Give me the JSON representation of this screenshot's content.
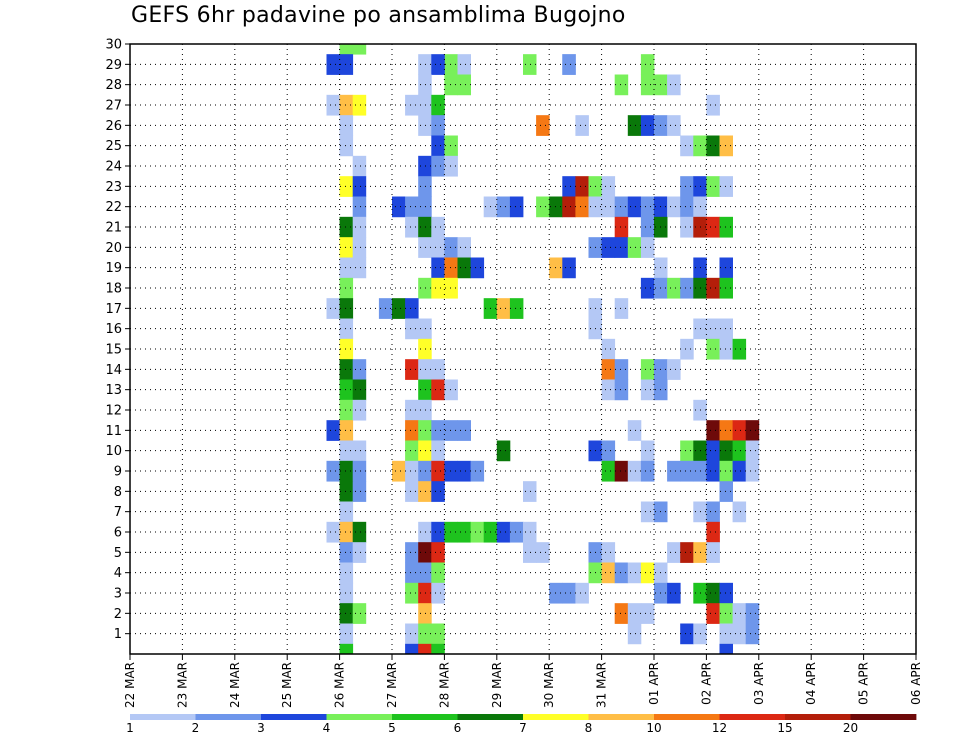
{
  "title": "GEFS 6hr padavine po ansamblima Bugojno",
  "chart_data": {
    "type": "heatmap",
    "title": "GEFS 6hr padavine po ansamblima Bugojno",
    "xlabel": "",
    "ylabel": "",
    "x_tick_labels": [
      "22 MAR",
      "23 MAR",
      "24 MAR",
      "25 MAR",
      "26 MAR",
      "27 MAR",
      "28 MAR",
      "29 MAR",
      "30 MAR",
      "31 MAR",
      "01 APR",
      "02 APR",
      "03 APR",
      "04 APR",
      "05 APR",
      "06 APR"
    ],
    "y_tick_labels": [
      "1",
      "2",
      "3",
      "4",
      "5",
      "6",
      "7",
      "8",
      "9",
      "10",
      "11",
      "12",
      "13",
      "14",
      "15",
      "16",
      "17",
      "18",
      "19",
      "20",
      "21",
      "22",
      "23",
      "24",
      "25",
      "26",
      "27",
      "28",
      "29",
      "30"
    ],
    "x_range": [
      "22 MAR 00",
      "06 APR 00"
    ],
    "y_range": [
      0,
      30
    ],
    "x_step": "6hr",
    "grid": true,
    "legend": {
      "placement": "bottom",
      "labels": [
        "1",
        "2",
        "3",
        "4",
        "5",
        "6",
        "7",
        "8",
        "10",
        "12",
        "15",
        "20"
      ],
      "colors": [
        "#b4c8f5",
        "#6e96eb",
        "#1e46dc",
        "#78f05a",
        "#1ec31e",
        "#0a780a",
        "#ffff28",
        "#ffbe46",
        "#f57814",
        "#dc2814",
        "#b41e0a",
        "#6e0a0a"
      ]
    },
    "levels": [
      1,
      2,
      3,
      4,
      5,
      6,
      7,
      8,
      10,
      12,
      15,
      20
    ],
    "cells": [
      [
        16,
        30,
        1
      ],
      [
        16,
        30,
        4
      ],
      [
        17,
        30,
        4
      ],
      [
        22,
        29,
        1
      ],
      [
        24,
        29,
        4
      ],
      [
        25,
        29,
        1
      ],
      [
        30,
        29,
        4
      ],
      [
        33,
        29,
        1
      ],
      [
        33,
        29,
        2
      ],
      [
        39,
        29,
        4
      ],
      [
        15,
        29,
        3
      ],
      [
        16,
        29,
        3
      ],
      [
        23,
        29,
        3
      ],
      [
        22,
        28,
        1
      ],
      [
        24,
        28,
        4
      ],
      [
        25,
        28,
        4
      ],
      [
        37,
        28,
        4
      ],
      [
        39,
        28,
        4
      ],
      [
        40,
        28,
        4
      ],
      [
        41,
        28,
        1
      ],
      [
        15,
        27,
        1
      ],
      [
        16,
        27,
        8
      ],
      [
        17,
        27,
        7
      ],
      [
        21,
        27,
        1
      ],
      [
        22,
        27,
        1
      ],
      [
        23,
        27,
        5
      ],
      [
        44,
        27,
        1
      ],
      [
        16,
        26,
        1
      ],
      [
        22,
        26,
        1
      ],
      [
        23,
        26,
        2
      ],
      [
        31,
        26,
        10
      ],
      [
        34,
        26,
        1
      ],
      [
        38,
        26,
        6
      ],
      [
        39,
        26,
        3
      ],
      [
        40,
        26,
        2
      ],
      [
        41,
        26,
        1
      ],
      [
        16,
        25,
        1
      ],
      [
        23,
        25,
        3
      ],
      [
        24,
        25,
        4
      ],
      [
        42,
        25,
        1
      ],
      [
        43,
        25,
        4
      ],
      [
        44,
        25,
        6
      ],
      [
        45,
        25,
        8
      ],
      [
        17,
        24,
        1
      ],
      [
        22,
        24,
        3
      ],
      [
        23,
        24,
        2
      ],
      [
        24,
        24,
        1
      ],
      [
        16,
        23,
        7
      ],
      [
        17,
        23,
        3
      ],
      [
        22,
        23,
        2
      ],
      [
        33,
        23,
        3
      ],
      [
        34,
        23,
        15
      ],
      [
        35,
        23,
        4
      ],
      [
        36,
        23,
        1
      ],
      [
        42,
        23,
        2
      ],
      [
        43,
        23,
        3
      ],
      [
        44,
        23,
        4
      ],
      [
        45,
        23,
        1
      ],
      [
        17,
        22,
        2
      ],
      [
        20,
        22,
        3
      ],
      [
        21,
        22,
        2
      ],
      [
        22,
        22,
        2
      ],
      [
        27,
        22,
        1
      ],
      [
        28,
        22,
        2
      ],
      [
        29,
        22,
        3
      ],
      [
        31,
        22,
        4
      ],
      [
        32,
        22,
        6
      ],
      [
        33,
        22,
        15
      ],
      [
        34,
        22,
        10
      ],
      [
        35,
        22,
        1
      ],
      [
        36,
        22,
        1
      ],
      [
        37,
        22,
        2
      ],
      [
        38,
        22,
        3
      ],
      [
        39,
        22,
        2
      ],
      [
        40,
        22,
        3
      ],
      [
        41,
        22,
        1
      ],
      [
        42,
        22,
        2
      ],
      [
        43,
        22,
        1
      ],
      [
        16,
        21,
        6
      ],
      [
        17,
        21,
        1
      ],
      [
        21,
        21,
        1
      ],
      [
        22,
        21,
        6
      ],
      [
        23,
        21,
        1
      ],
      [
        37,
        21,
        12
      ],
      [
        39,
        21,
        2
      ],
      [
        40,
        21,
        6
      ],
      [
        42,
        21,
        1
      ],
      [
        43,
        21,
        15
      ],
      [
        44,
        21,
        12
      ],
      [
        45,
        21,
        5
      ],
      [
        16,
        20,
        7
      ],
      [
        17,
        20,
        1
      ],
      [
        22,
        20,
        1
      ],
      [
        23,
        20,
        1
      ],
      [
        24,
        20,
        2
      ],
      [
        25,
        20,
        1
      ],
      [
        35,
        20,
        2
      ],
      [
        36,
        20,
        3
      ],
      [
        37,
        20,
        3
      ],
      [
        38,
        20,
        4
      ],
      [
        39,
        20,
        1
      ],
      [
        16,
        19,
        1
      ],
      [
        17,
        19,
        1
      ],
      [
        23,
        19,
        3
      ],
      [
        24,
        19,
        10
      ],
      [
        25,
        19,
        6
      ],
      [
        26,
        19,
        3
      ],
      [
        32,
        19,
        8
      ],
      [
        33,
        19,
        3
      ],
      [
        40,
        19,
        1
      ],
      [
        43,
        19,
        3
      ],
      [
        45,
        19,
        3
      ],
      [
        16,
        18,
        4
      ],
      [
        22,
        18,
        4
      ],
      [
        23,
        18,
        7
      ],
      [
        24,
        18,
        7
      ],
      [
        39,
        18,
        3
      ],
      [
        40,
        18,
        2
      ],
      [
        41,
        18,
        4
      ],
      [
        42,
        18,
        2
      ],
      [
        43,
        18,
        6
      ],
      [
        44,
        18,
        15
      ],
      [
        45,
        18,
        5
      ],
      [
        15,
        17,
        1
      ],
      [
        16,
        17,
        6
      ],
      [
        19,
        17,
        2
      ],
      [
        20,
        17,
        6
      ],
      [
        21,
        17,
        3
      ],
      [
        27,
        17,
        5
      ],
      [
        28,
        17,
        8
      ],
      [
        29,
        17,
        5
      ],
      [
        35,
        17,
        1
      ],
      [
        37,
        17,
        1
      ],
      [
        16,
        16,
        1
      ],
      [
        21,
        16,
        1
      ],
      [
        22,
        16,
        1
      ],
      [
        35,
        16,
        1
      ],
      [
        43,
        16,
        1
      ],
      [
        44,
        16,
        1
      ],
      [
        45,
        16,
        1
      ],
      [
        16,
        15,
        7
      ],
      [
        22,
        15,
        7
      ],
      [
        36,
        15,
        1
      ],
      [
        42,
        15,
        1
      ],
      [
        44,
        15,
        4
      ],
      [
        45,
        15,
        1
      ],
      [
        46,
        15,
        5
      ],
      [
        16,
        14,
        6
      ],
      [
        17,
        14,
        2
      ],
      [
        21,
        14,
        12
      ],
      [
        22,
        14,
        1
      ],
      [
        23,
        14,
        1
      ],
      [
        36,
        14,
        10
      ],
      [
        37,
        14,
        2
      ],
      [
        39,
        14,
        4
      ],
      [
        40,
        14,
        2
      ],
      [
        41,
        14,
        1
      ],
      [
        16,
        13,
        5
      ],
      [
        17,
        13,
        6
      ],
      [
        22,
        13,
        5
      ],
      [
        23,
        13,
        12
      ],
      [
        24,
        13,
        1
      ],
      [
        36,
        13,
        1
      ],
      [
        37,
        13,
        2
      ],
      [
        39,
        13,
        1
      ],
      [
        40,
        13,
        2
      ],
      [
        16,
        12,
        4
      ],
      [
        17,
        12,
        1
      ],
      [
        21,
        12,
        1
      ],
      [
        22,
        12,
        1
      ],
      [
        43,
        12,
        1
      ],
      [
        15,
        11,
        3
      ],
      [
        16,
        11,
        8
      ],
      [
        21,
        11,
        10
      ],
      [
        22,
        11,
        4
      ],
      [
        23,
        11,
        2
      ],
      [
        24,
        11,
        2
      ],
      [
        25,
        11,
        2
      ],
      [
        38,
        11,
        1
      ],
      [
        44,
        11,
        20
      ],
      [
        45,
        11,
        10
      ],
      [
        46,
        11,
        12
      ],
      [
        47,
        11,
        20
      ],
      [
        16,
        10,
        1
      ],
      [
        17,
        10,
        1
      ],
      [
        21,
        10,
        4
      ],
      [
        22,
        10,
        7
      ],
      [
        23,
        10,
        1
      ],
      [
        28,
        10,
        6
      ],
      [
        35,
        10,
        3
      ],
      [
        36,
        10,
        2
      ],
      [
        39,
        10,
        1
      ],
      [
        42,
        10,
        4
      ],
      [
        43,
        10,
        6
      ],
      [
        44,
        10,
        3
      ],
      [
        45,
        10,
        6
      ],
      [
        46,
        10,
        5
      ],
      [
        47,
        10,
        1
      ],
      [
        15,
        9,
        2
      ],
      [
        16,
        9,
        6
      ],
      [
        17,
        9,
        2
      ],
      [
        20,
        9,
        8
      ],
      [
        21,
        9,
        1
      ],
      [
        22,
        9,
        2
      ],
      [
        23,
        9,
        12
      ],
      [
        24,
        9,
        3
      ],
      [
        25,
        9,
        3
      ],
      [
        26,
        9,
        2
      ],
      [
        36,
        9,
        5
      ],
      [
        37,
        9,
        20
      ],
      [
        38,
        9,
        1
      ],
      [
        39,
        9,
        2
      ],
      [
        41,
        9,
        2
      ],
      [
        42,
        9,
        2
      ],
      [
        43,
        9,
        2
      ],
      [
        44,
        9,
        3
      ],
      [
        45,
        9,
        4
      ],
      [
        46,
        9,
        3
      ],
      [
        47,
        9,
        1
      ],
      [
        16,
        8,
        6
      ],
      [
        17,
        8,
        2
      ],
      [
        21,
        8,
        1
      ],
      [
        22,
        8,
        8
      ],
      [
        23,
        8,
        3
      ],
      [
        30,
        8,
        1
      ],
      [
        45,
        8,
        2
      ],
      [
        16,
        7,
        1
      ],
      [
        39,
        7,
        1
      ],
      [
        40,
        7,
        2
      ],
      [
        43,
        7,
        1
      ],
      [
        44,
        7,
        2
      ],
      [
        46,
        7,
        1
      ],
      [
        15,
        6,
        1
      ],
      [
        16,
        6,
        8
      ],
      [
        17,
        6,
        6
      ],
      [
        22,
        6,
        1
      ],
      [
        23,
        6,
        3
      ],
      [
        24,
        6,
        5
      ],
      [
        25,
        6,
        5
      ],
      [
        26,
        6,
        4
      ],
      [
        27,
        6,
        5
      ],
      [
        28,
        6,
        3
      ],
      [
        29,
        6,
        2
      ],
      [
        30,
        6,
        1
      ],
      [
        44,
        6,
        12
      ],
      [
        16,
        5,
        2
      ],
      [
        17,
        5,
        1
      ],
      [
        21,
        5,
        2
      ],
      [
        22,
        5,
        20
      ],
      [
        23,
        5,
        12
      ],
      [
        30,
        5,
        1
      ],
      [
        31,
        5,
        1
      ],
      [
        35,
        5,
        2
      ],
      [
        36,
        5,
        1
      ],
      [
        41,
        5,
        1
      ],
      [
        42,
        5,
        15
      ],
      [
        43,
        5,
        8
      ],
      [
        44,
        5,
        1
      ],
      [
        16,
        4,
        1
      ],
      [
        21,
        4,
        2
      ],
      [
        22,
        4,
        2
      ],
      [
        23,
        4,
        4
      ],
      [
        35,
        4,
        4
      ],
      [
        36,
        4,
        8
      ],
      [
        37,
        4,
        2
      ],
      [
        38,
        4,
        1
      ],
      [
        39,
        4,
        7
      ],
      [
        40,
        4,
        1
      ],
      [
        16,
        3,
        1
      ],
      [
        21,
        3,
        4
      ],
      [
        22,
        3,
        12
      ],
      [
        23,
        3,
        1
      ],
      [
        32,
        3,
        2
      ],
      [
        33,
        3,
        2
      ],
      [
        34,
        3,
        1
      ],
      [
        40,
        3,
        2
      ],
      [
        41,
        3,
        3
      ],
      [
        43,
        3,
        5
      ],
      [
        44,
        3,
        6
      ],
      [
        45,
        3,
        3
      ],
      [
        16,
        2,
        6
      ],
      [
        17,
        2,
        4
      ],
      [
        22,
        2,
        8
      ],
      [
        37,
        2,
        10
      ],
      [
        38,
        2,
        1
      ],
      [
        39,
        2,
        1
      ],
      [
        44,
        2,
        12
      ],
      [
        45,
        2,
        4
      ],
      [
        46,
        2,
        1
      ],
      [
        47,
        2,
        2
      ],
      [
        16,
        1,
        1
      ],
      [
        21,
        1,
        1
      ],
      [
        22,
        1,
        4
      ],
      [
        23,
        1,
        4
      ],
      [
        38,
        1,
        1
      ],
      [
        42,
        1,
        3
      ],
      [
        43,
        1,
        1
      ],
      [
        45,
        1,
        1
      ],
      [
        46,
        1,
        1
      ],
      [
        47,
        1,
        2
      ],
      [
        16,
        0,
        5
      ],
      [
        21,
        0,
        3
      ],
      [
        22,
        0,
        12
      ],
      [
        23,
        0,
        5
      ],
      [
        45,
        0,
        3
      ]
    ]
  }
}
